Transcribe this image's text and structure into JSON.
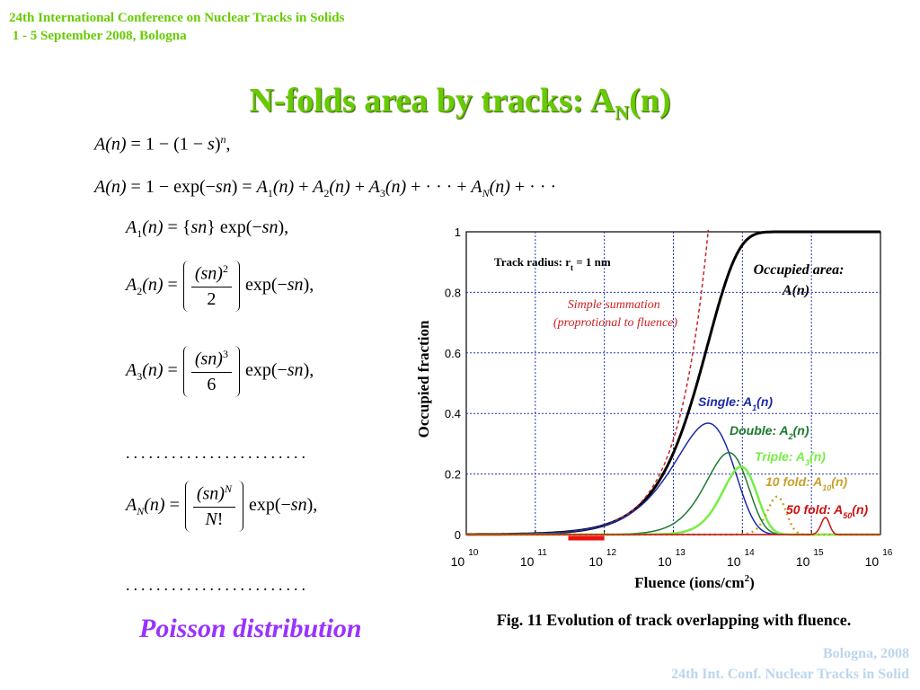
{
  "header": {
    "conference_line1": "24th International Conference on Nuclear Tracks in Solids",
    "conference_line2": "1 - 5 September 2008, Bologna"
  },
  "title": {
    "main": "N-folds area by tracks: A",
    "sub": "N",
    "tail": "(n)"
  },
  "equations": {
    "dots": "........................",
    "poisson": "Poisson distribution"
  },
  "caption": "Fig. 11 Evolution of track overlapping with fluence.",
  "footer": {
    "line1": "Bologna,  2008",
    "line2": "24th Int. Conf. Nuclear Tracks in Solid"
  },
  "chart_data": {
    "type": "line",
    "xscale": "log",
    "xlim": [
      10000000000.0,
      1e+16
    ],
    "ylim": [
      0,
      1
    ],
    "xlabel": "Fluence (ions/cm",
    "xlabel_sup": "2",
    "xlabel_tail": ")",
    "ylabel": "Occupied fraction",
    "x_ticks": [
      {
        "base": "10",
        "exp": "10",
        "value": 10000000000.0
      },
      {
        "base": "10",
        "exp": "11",
        "value": 100000000000.0
      },
      {
        "base": "10",
        "exp": "12",
        "value": 1000000000000.0
      },
      {
        "base": "10",
        "exp": "13",
        "value": 10000000000000.0
      },
      {
        "base": "10",
        "exp": "14",
        "value": 100000000000000.0
      },
      {
        "base": "10",
        "exp": "15",
        "value": 1000000000000000.0
      },
      {
        "base": "10",
        "exp": "16",
        "value": 1e+16
      }
    ],
    "y_ticks": [
      "0",
      "0.2",
      "0.4",
      "0.6",
      "0.8",
      "1"
    ],
    "y_tick_values": [
      0,
      0.2,
      0.4,
      0.6,
      0.8,
      1
    ],
    "grid": true,
    "annotations": {
      "track_radius": "Track radius: r",
      "track_radius_sub": "t",
      "track_radius_tail": " = 1 nm",
      "occupied_area_line1": "Occupied area:",
      "occupied_area_line2": "A(n)",
      "simple_sum_line1": "Simple summation",
      "simple_sum_line2": "(proprotional to fluence)"
    },
    "track_area_cm2": 3.14159e-14,
    "series": [
      {
        "key": "occupied",
        "color": "#000000",
        "width": 3,
        "dash": "",
        "formula": "A(n)"
      },
      {
        "key": "simple",
        "color": "#cc2222",
        "width": 1.5,
        "dash": "4,3",
        "formula": "sn"
      },
      {
        "key": "A1",
        "label": "Single: A",
        "sub": "1",
        "tail": "(n)",
        "N": 1,
        "color": "#1a2aa8",
        "width": 1.5
      },
      {
        "key": "A2",
        "label": "Double: A",
        "sub": "2",
        "tail": "(n)",
        "N": 2,
        "color": "#1e7a2e",
        "width": 1.5
      },
      {
        "key": "A3",
        "label": "Triple: A",
        "sub": "3",
        "tail": "(n)",
        "N": 3,
        "color": "#77ee44",
        "width": 2.5
      },
      {
        "key": "A10",
        "label": "10 fold: A",
        "sub": "10",
        "tail": "(n)",
        "N": 10,
        "color": "#c8a02a",
        "width": 2.5,
        "dash": "2,4"
      },
      {
        "key": "A50",
        "label": "50 fold: A",
        "sub": "50",
        "tail": "(n)",
        "N": 50,
        "color": "#cc1111",
        "width": 1.5
      }
    ],
    "highlight_range": {
      "from": 300000000000.0,
      "to": 1000000000000.0,
      "color": "#ee1111"
    }
  }
}
